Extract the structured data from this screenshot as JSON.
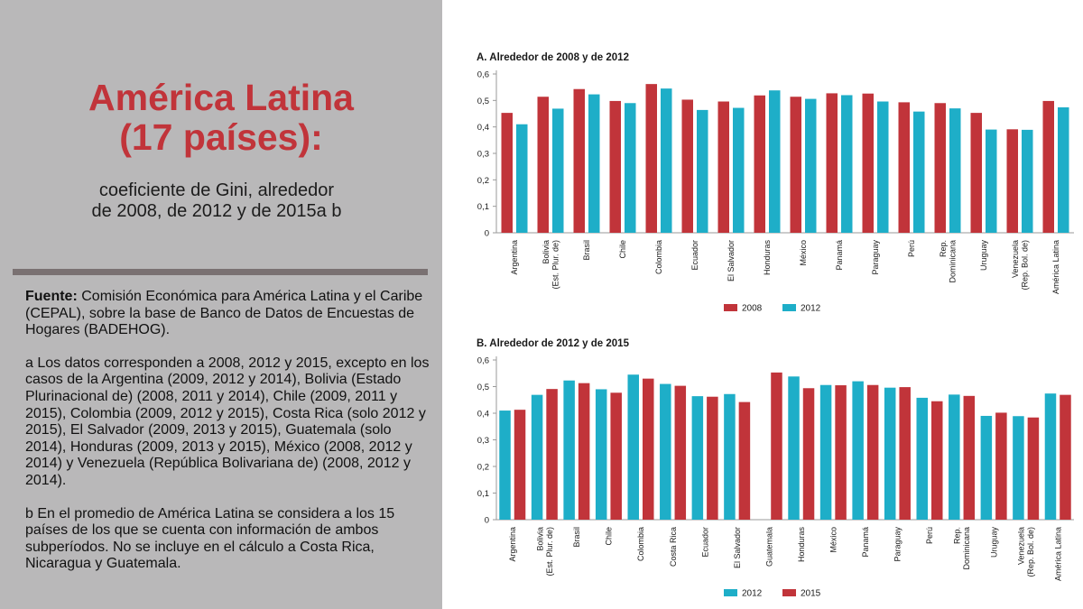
{
  "title_lines": [
    "América Latina",
    "(17 países):"
  ],
  "subtitle_lines": [
    "coeficiente de Gini, alrededor",
    "de 2008, de 2012 y de 2015a b"
  ],
  "source": {
    "label": "Fuente:",
    "text": "Comisión Económica para América Latina y el Caribe (CEPAL), sobre la base de Banco de Datos de Encuestas de Hogares (BADEHOG)."
  },
  "note_a": "a Los datos corresponden a 2008, 2012 y 2015, excepto en los casos de la Argentina (2009, 2012 y 2014), Bolivia (Estado Plurinacional de) (2008, 2011 y 2014), Chile (2009, 2011 y 2015), Colombia (2009, 2012 y 2015), Costa Rica (solo 2012 y 2015), El Salvador (2009, 2013 y 2015), Guatemala (solo 2014), Honduras (2009, 2013 y 2015), México (2008, 2012 y 2014) y Venezuela (República Bolivariana de) (2008, 2012 y 2014).",
  "note_b": "b En el promedio de América Latina se considera a los 15 países de los que se cuenta con información de ambos subperíodos. No se incluye en el cálculo a Costa Rica, Nicaragua y Guatemala.",
  "colors": {
    "red": "#c1343a",
    "cyan": "#1eaec8",
    "axis": "#9a9a9a",
    "text": "#1a1a1a"
  },
  "chart_data": [
    {
      "type": "bar",
      "title": "A. Alrededor de 2008 y de 2012",
      "xlabel": "",
      "ylabel": "",
      "ylim": [
        0,
        0.6
      ],
      "yticks": [
        "0",
        "0,1",
        "0,2",
        "0,3",
        "0,4",
        "0,5",
        "0,6"
      ],
      "categories": [
        [
          "Argentina"
        ],
        [
          "Bolivia",
          "(Est. Plur. de)"
        ],
        [
          "Brasil"
        ],
        [
          "Chile"
        ],
        [
          "Colombia"
        ],
        [
          "Ecuador"
        ],
        [
          "El Salvador"
        ],
        [
          "Honduras"
        ],
        [
          "México"
        ],
        [
          "Panamá"
        ],
        [
          "Paraguay"
        ],
        [
          "Perú"
        ],
        [
          "Rep.",
          "Dominicana"
        ],
        [
          "Uruguay"
        ],
        [
          "Venezuela",
          "(Rep. Bol. de)"
        ],
        [
          "América Latina"
        ]
      ],
      "series": [
        {
          "name": "2008",
          "color": "#c1343a",
          "values": [
            0.453,
            0.514,
            0.543,
            0.498,
            0.562,
            0.503,
            0.496,
            0.519,
            0.514,
            0.527,
            0.526,
            0.493,
            0.49,
            0.453,
            0.391,
            0.498
          ]
        },
        {
          "name": "2012",
          "color": "#1eaec8",
          "values": [
            0.41,
            0.469,
            0.523,
            0.49,
            0.545,
            0.464,
            0.472,
            0.538,
            0.506,
            0.52,
            0.496,
            0.458,
            0.47,
            0.39,
            0.389,
            0.474
          ]
        }
      ],
      "legend": "bottom-center"
    },
    {
      "type": "bar",
      "title": "B. Alrededor de 2012 y de 2015",
      "xlabel": "",
      "ylabel": "",
      "ylim": [
        0,
        0.6
      ],
      "yticks": [
        "0",
        "0,1",
        "0,2",
        "0,3",
        "0,4",
        "0,5",
        "0,6"
      ],
      "categories": [
        [
          "Argentina"
        ],
        [
          "Bolivia",
          "(Est. Plur. de)"
        ],
        [
          "Brasil"
        ],
        [
          "Chile"
        ],
        [
          "Colombia"
        ],
        [
          "Costa Rica"
        ],
        [
          "Ecuador"
        ],
        [
          "El Salvador"
        ],
        [
          "Guatemala"
        ],
        [
          "Honduras"
        ],
        [
          "México"
        ],
        [
          "Panamá"
        ],
        [
          "Paraguay"
        ],
        [
          "Perú"
        ],
        [
          "Rep.",
          "Dominicana"
        ],
        [
          "Uruguay"
        ],
        [
          "Venezuela",
          "(Rep. Bol. de)"
        ],
        [
          "América Latina"
        ]
      ],
      "series": [
        {
          "name": "2012",
          "color": "#1eaec8",
          "values": [
            0.41,
            0.469,
            0.523,
            0.49,
            0.545,
            0.51,
            0.464,
            0.472,
            null,
            0.538,
            0.506,
            0.52,
            0.496,
            0.458,
            0.47,
            0.39,
            0.389,
            0.474
          ]
        },
        {
          "name": "2015",
          "color": "#c1343a",
          "values": [
            0.413,
            0.491,
            0.513,
            0.477,
            0.53,
            0.503,
            0.462,
            0.442,
            0.553,
            0.494,
            0.505,
            0.506,
            0.498,
            0.445,
            0.465,
            0.402,
            0.384,
            0.469
          ]
        }
      ],
      "legend": "bottom-center"
    }
  ]
}
